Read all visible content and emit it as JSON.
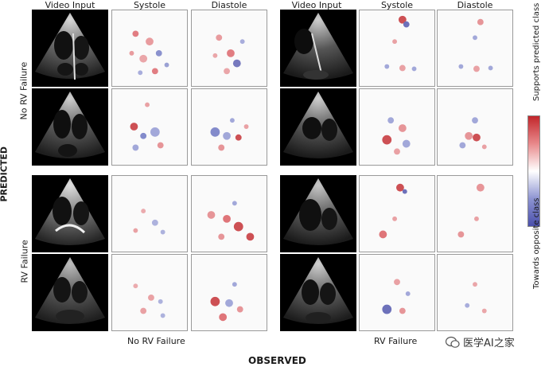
{
  "column_headers": {
    "left": [
      "Video Input",
      "Systole",
      "Diastole"
    ],
    "right": [
      "Video Input",
      "Systole",
      "Diastole"
    ]
  },
  "axis": {
    "predicted": "PREDICTED",
    "observed": "OBSERVED"
  },
  "row_groups": {
    "no_rv_failure": "No RV Failure",
    "rv_failure": "RV Failure"
  },
  "observed_columns": {
    "left": "No RV Failure",
    "right": "RV Failure"
  },
  "colorbar": {
    "top_label": "Supports predicted class",
    "bottom_label": "Towards opposite class",
    "colors": {
      "high": "#c2262b",
      "mid": "#ffffff",
      "low": "#4a4fab"
    }
  },
  "watermark": {
    "text": "医学AI之家",
    "icon": "wechat-icon"
  }
}
